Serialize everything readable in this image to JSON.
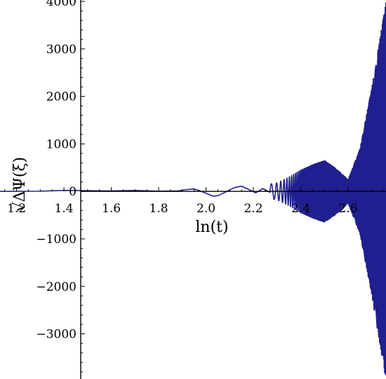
{
  "chart_data": {
    "type": "line",
    "title": "",
    "xlabel": "ln(t)",
    "ylabel": "√ΔΨ(ξ)",
    "xlim": [
      1.13,
      2.76
    ],
    "ylim": [
      -3950,
      4030
    ],
    "x_ticks": [
      1.2,
      1.4,
      1.6,
      1.8,
      2.0,
      2.2,
      2.4,
      2.6
    ],
    "x_tick_labels": [
      "1.2",
      "1.4",
      "1.6",
      "1.8",
      "2.0",
      "2.2",
      "2.4",
      "2.6"
    ],
    "y_ticks": [
      4000,
      3000,
      2000,
      1000,
      0,
      -1000,
      -2000,
      -3000
    ],
    "y_tick_labels": [
      "4000",
      "3000",
      "2000",
      "1000",
      "0",
      "−1000",
      "−2000",
      "−3000"
    ],
    "grid": false,
    "legend": "none",
    "series": [
      {
        "color": "#1f1f8f",
        "envelope": {
          "x": [
            1.13,
            1.4,
            1.7,
            1.9,
            2.0,
            2.1,
            2.2,
            2.3,
            2.35,
            2.4,
            2.45,
            2.5,
            2.55,
            2.6,
            2.65,
            2.7,
            2.76
          ],
          "amplitude": [
            5,
            15,
            20,
            40,
            60,
            90,
            100,
            180,
            300,
            450,
            560,
            650,
            480,
            250,
            900,
            2200,
            4000
          ]
        },
        "x": [
          1.13,
          1.3,
          1.4,
          1.5,
          1.6,
          1.7,
          1.8,
          1.88,
          1.92,
          1.95,
          1.97,
          2.0,
          2.03,
          2.05,
          2.08,
          2.12,
          2.15,
          2.18,
          2.21,
          2.24,
          2.27
        ],
        "y": [
          0,
          5,
          20,
          15,
          10,
          20,
          5,
          10,
          40,
          50,
          20,
          -40,
          -100,
          -90,
          -20,
          80,
          110,
          40,
          -30,
          60,
          -20
        ]
      }
    ]
  }
}
